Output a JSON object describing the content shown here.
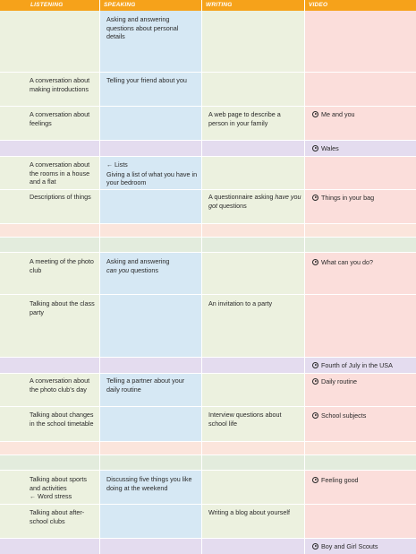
{
  "header": {
    "listening": "LISTENING",
    "speaking": "SPEAKING",
    "writing": "WRITING",
    "video": "VIDEO"
  },
  "icons": {
    "video_marker": "play-circle-icon",
    "pronunciation_marker": "echo-arrow-icon"
  },
  "colors": {
    "header": "#f6a21a",
    "listening": "#ecf1df",
    "speaking": "#d6e8f4",
    "writing": "#ecf1df",
    "video": "#fbdedb",
    "band_pink": "#fbe5dc",
    "band_lavender": "#e4dcef"
  },
  "rows": {
    "r1": {
      "speaking": "Asking and answering questions about personal details"
    },
    "r2": {
      "listening": "A conversation about making introductions",
      "speaking": "Telling your friend about you"
    },
    "r3": {
      "listening": "A conversation about feelings",
      "writing": "A web page to describe a person in your family",
      "video": "Me and you"
    },
    "r4": {
      "video": "Wales"
    },
    "r5": {
      "listening": "A conversation about the rooms in a house and a flat",
      "speaking_marker": "←",
      "speaking_a": "Lists",
      "speaking_b": "Giving a list of what you have in your bedroom"
    },
    "r6": {
      "listening": "Descriptions of things",
      "writing_a": "A questionnaire asking ",
      "writing_em": "have you got",
      "writing_b": " questions",
      "video": "Things in your bag"
    },
    "r7": {
      "listening": "A meeting of the photo club",
      "speaking_a": "Asking and answering",
      "speaking_em": "can you",
      "speaking_b": " questions",
      "video": "What can you do?"
    },
    "r8": {
      "listening": "Talking about the class party",
      "writing": "An invitation to a party"
    },
    "r9": {
      "video": "Fourth of July in the USA"
    },
    "r10": {
      "listening": "A conversation about the photo club’s day",
      "speaking": "Telling a partner about your daily routine",
      "video": "Daily routine"
    },
    "r11": {
      "listening": "Talking about changes in the school timetable",
      "writing": "Interview questions about school life",
      "video": "School subjects"
    },
    "r12": {
      "listening_a": "Talking about sports and activities",
      "listening_marker": "←",
      "listening_b": "Word stress",
      "speaking": "Discussing five things you like doing at the weekend",
      "video": "Feeling good"
    },
    "r13": {
      "listening": "Talking about after-school clubs",
      "writing": "Writing a blog about yourself"
    },
    "r14": {
      "video": "Boy and Girl Scouts"
    }
  }
}
